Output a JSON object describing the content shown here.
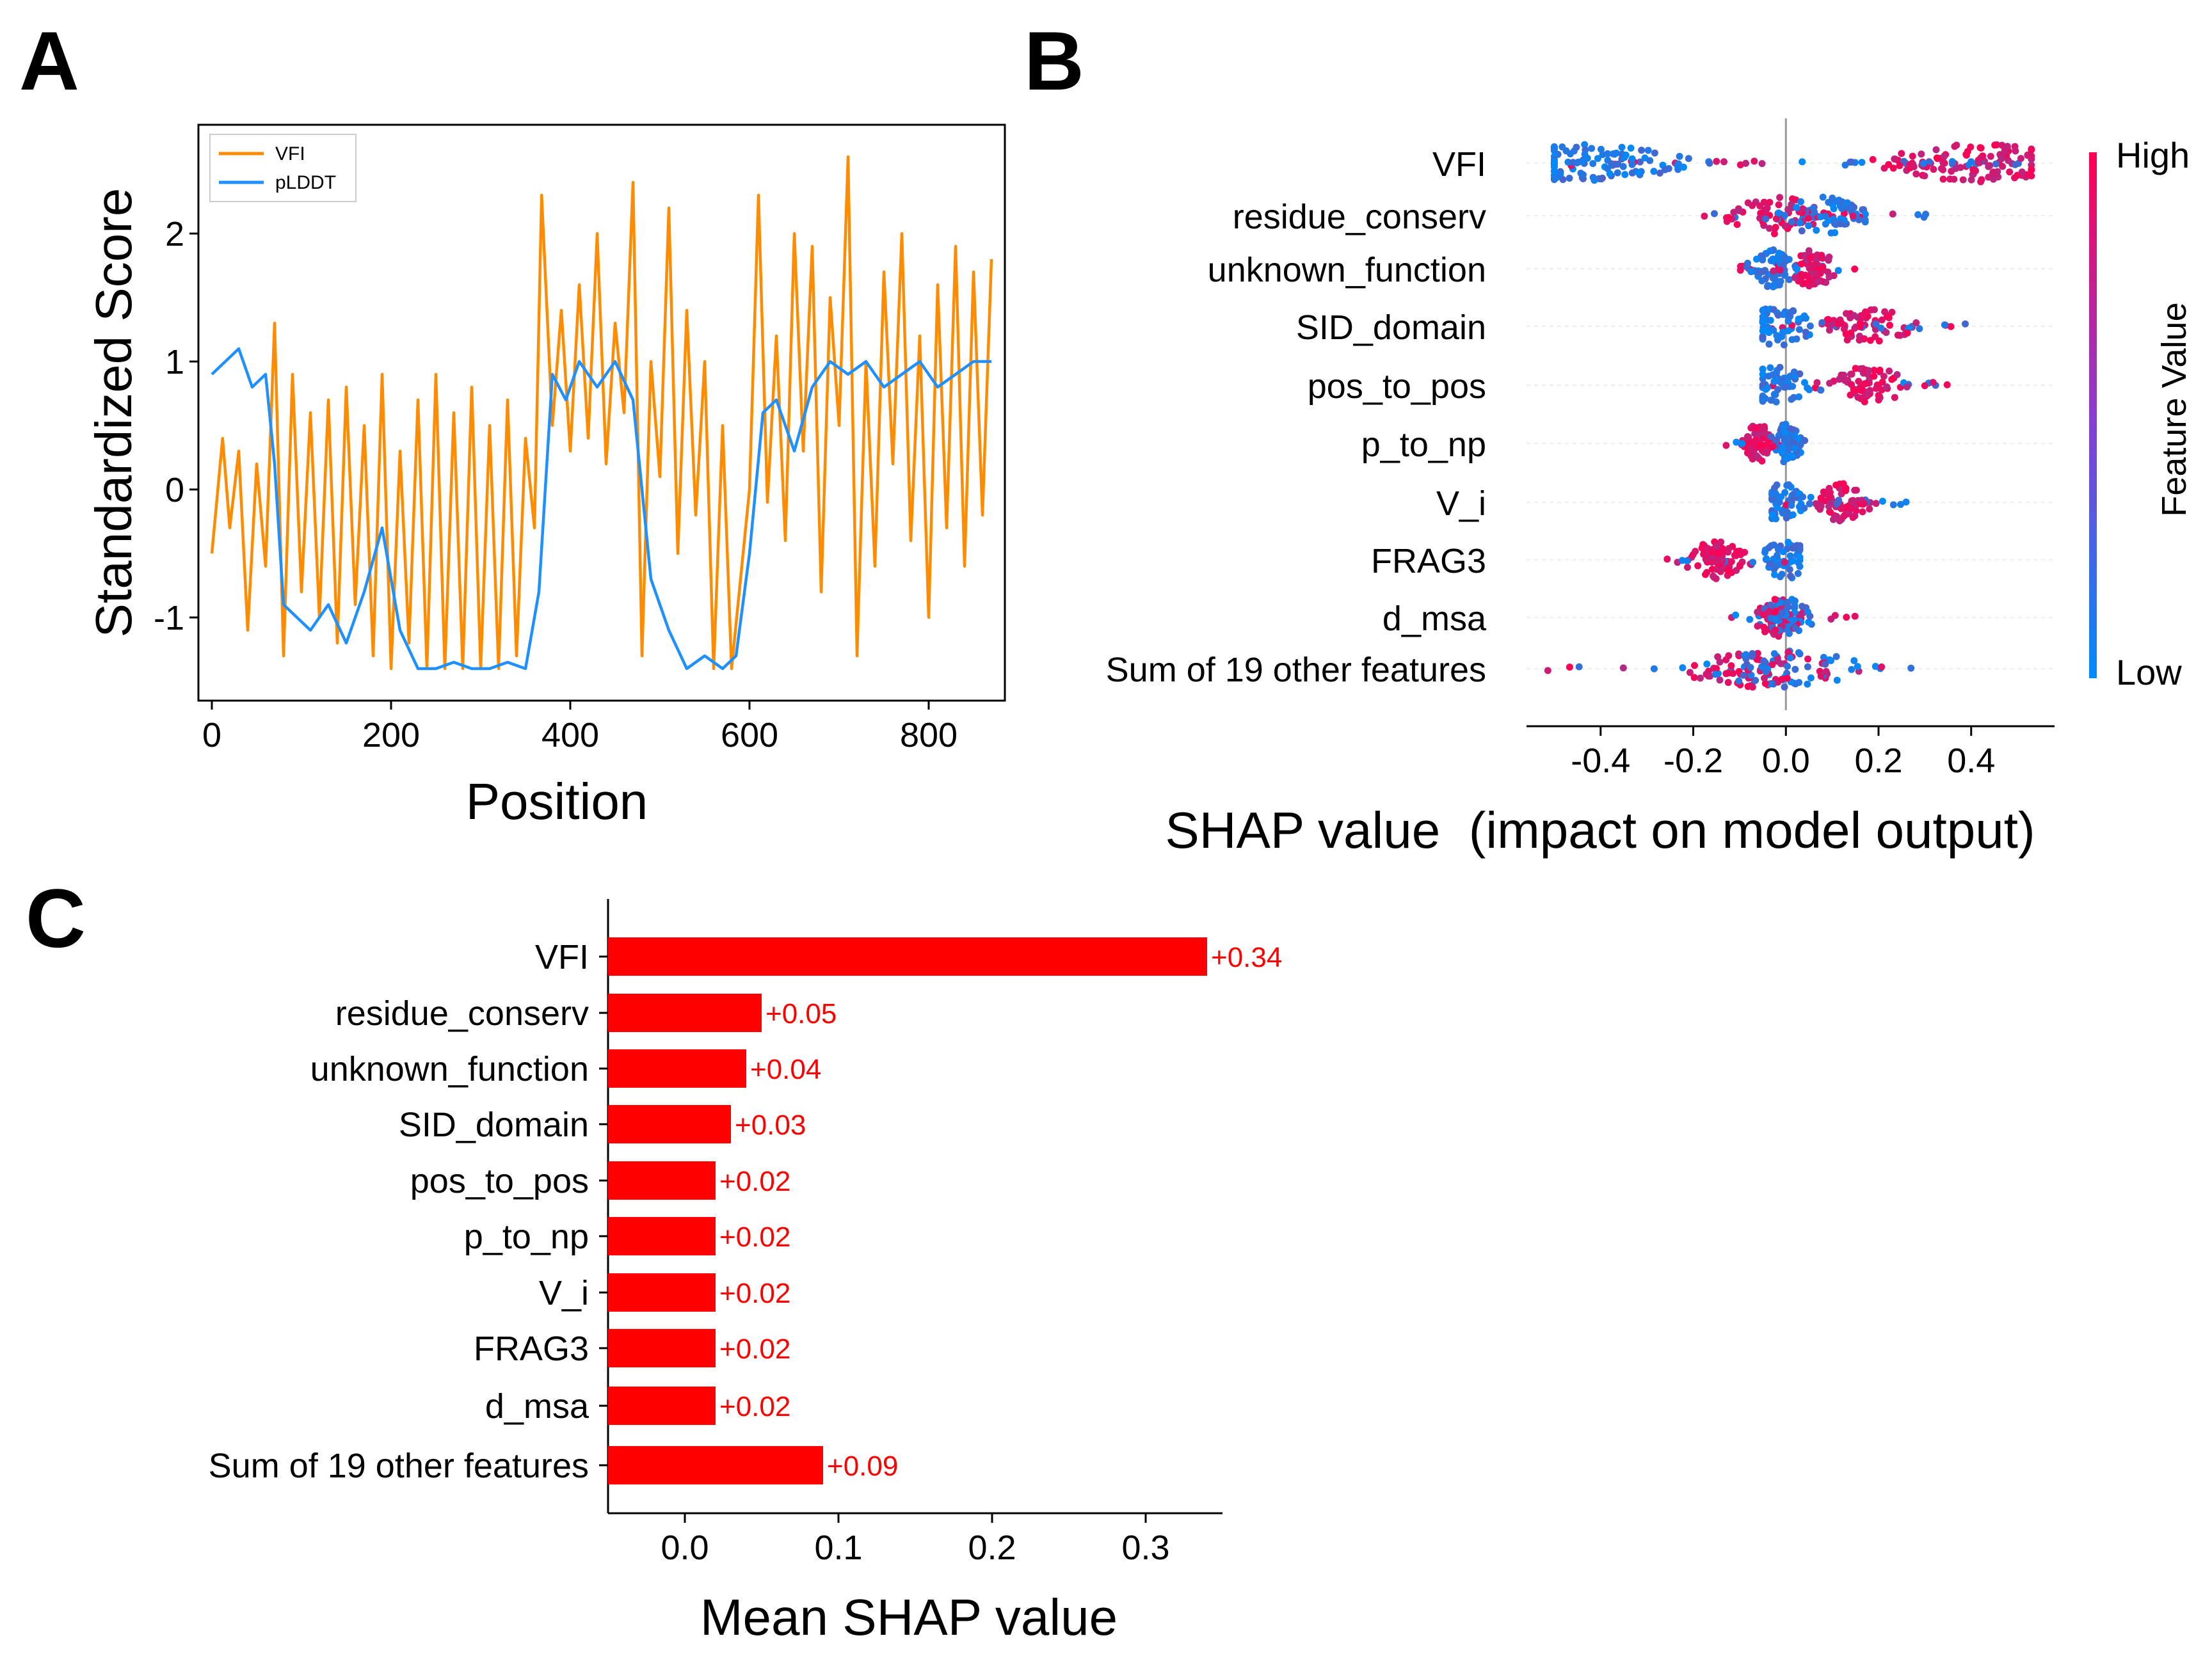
{
  "colors": {
    "vfi_line": "#ff8c00",
    "plddt_line": "#1e90ff",
    "shap_high": "#ff0052",
    "shap_low": "#008bfb",
    "bar": "#ff0000",
    "bar_label": "#ff0000",
    "axis": "#000000"
  },
  "chart_data": [
    {
      "panel": "A",
      "type": "line",
      "xlabel": "Position",
      "ylabel": "Standardized Score",
      "xlim": [
        -15,
        885
      ],
      "ylim": [
        -1.65,
        2.85
      ],
      "xticks": [
        "0",
        "200",
        "400",
        "600",
        "800"
      ],
      "yticks": [
        "-1",
        "0",
        "1",
        "2"
      ],
      "legend": {
        "placement": "top-left",
        "entries": [
          "VFI",
          "pLDDT"
        ]
      },
      "series": [
        {
          "name": "VFI",
          "color": "#ff8c00",
          "x": [
            0,
            12,
            20,
            30,
            40,
            50,
            60,
            70,
            80,
            90,
            100,
            110,
            120,
            130,
            140,
            150,
            160,
            170,
            180,
            190,
            200,
            210,
            220,
            230,
            240,
            250,
            260,
            270,
            280,
            290,
            300,
            310,
            320,
            330,
            340,
            350,
            360,
            368,
            380,
            390,
            400,
            410,
            420,
            430,
            440,
            450,
            460,
            470,
            480,
            490,
            500,
            510,
            520,
            530,
            540,
            550,
            560,
            570,
            580,
            590,
            600,
            610,
            620,
            630,
            640,
            650,
            660,
            670,
            680,
            690,
            700,
            710,
            720,
            730,
            740,
            750,
            760,
            770,
            780,
            790,
            800,
            810,
            820,
            830,
            840,
            850,
            860,
            870
          ],
          "values": [
            -0.5,
            0.4,
            -0.3,
            0.3,
            -1.1,
            0.2,
            -0.6,
            1.3,
            -1.3,
            0.9,
            -0.8,
            0.6,
            -1.0,
            0.7,
            -1.2,
            0.8,
            -0.9,
            0.5,
            -1.3,
            0.9,
            -1.4,
            0.3,
            -1.2,
            0.7,
            -1.4,
            0.9,
            -1.4,
            0.6,
            -1.4,
            0.8,
            -1.4,
            0.5,
            -1.4,
            0.7,
            -1.3,
            0.4,
            -0.3,
            2.3,
            0.5,
            1.4,
            0.3,
            1.6,
            0.4,
            2.0,
            0.2,
            1.3,
            0.6,
            2.4,
            -1.3,
            1.0,
            0.1,
            2.2,
            -0.5,
            1.4,
            -0.2,
            1.0,
            -1.4,
            0.5,
            -1.4,
            -0.7,
            0.0,
            2.3,
            -0.1,
            1.2,
            -0.4,
            2.0,
            0.3,
            1.9,
            -0.8,
            1.5,
            0.5,
            2.6,
            -1.3,
            1.0,
            -0.6,
            1.7,
            0.2,
            2.0,
            -0.4,
            1.2,
            -1.0,
            1.6,
            -0.3,
            1.9,
            -0.6,
            1.7,
            -0.2,
            1.8
          ]
        },
        {
          "name": "pLDDT",
          "color": "#1e90ff",
          "x": [
            0,
            15,
            30,
            45,
            60,
            70,
            80,
            95,
            110,
            130,
            150,
            170,
            190,
            210,
            230,
            250,
            270,
            290,
            310,
            330,
            350,
            365,
            380,
            395,
            410,
            430,
            450,
            470,
            490,
            510,
            530,
            550,
            570,
            585,
            600,
            615,
            630,
            650,
            670,
            690,
            710,
            730,
            750,
            770,
            790,
            810,
            830,
            850,
            870
          ],
          "values": [
            0.9,
            1.0,
            1.1,
            0.8,
            0.9,
            0.2,
            -0.9,
            -1.0,
            -1.1,
            -0.9,
            -1.2,
            -0.8,
            -0.3,
            -1.1,
            -1.4,
            -1.4,
            -1.35,
            -1.4,
            -1.4,
            -1.35,
            -1.4,
            -0.8,
            0.9,
            0.7,
            1.0,
            0.8,
            1.0,
            0.7,
            -0.7,
            -1.1,
            -1.4,
            -1.3,
            -1.4,
            -1.3,
            -0.5,
            0.6,
            0.7,
            0.3,
            0.8,
            1.0,
            0.9,
            1.0,
            0.8,
            0.9,
            1.0,
            0.8,
            0.9,
            1.0,
            1.0
          ]
        }
      ]
    },
    {
      "panel": "B",
      "type": "scatter",
      "title": "",
      "xlabel": "SHAP value  (impact on model output)",
      "xlim": [
        -0.56,
        0.58
      ],
      "xticks": [
        "-0.4",
        "-0.2",
        "0.0",
        "0.2",
        "0.4"
      ],
      "features": [
        "VFI",
        "residue_conserv",
        "unknown_function",
        "SID_domain",
        "pos_to_pos",
        "p_to_np",
        "V_i",
        "FRAG3",
        "d_msa",
        "Sum of 19 other features"
      ],
      "spread": [
        {
          "feature": "VFI",
          "min": -0.5,
          "max": 0.53,
          "low_center": -0.42,
          "high_center": 0.42
        },
        {
          "feature": "residue_conserv",
          "min": -0.2,
          "max": 0.32,
          "low_center": 0.08,
          "high_center": -0.02
        },
        {
          "feature": "unknown_function",
          "min": -0.1,
          "max": 0.15,
          "low_center": -0.03,
          "high_center": 0.06
        },
        {
          "feature": "SID_domain",
          "min": -0.05,
          "max": 0.4,
          "low_center": -0.02,
          "high_center": 0.18
        },
        {
          "feature": "pos_to_pos",
          "min": -0.05,
          "max": 0.37,
          "low_center": -0.02,
          "high_center": 0.18
        },
        {
          "feature": "p_to_np",
          "min": -0.13,
          "max": 0.05,
          "low_center": 0.0,
          "high_center": -0.06
        },
        {
          "feature": "V_i",
          "min": -0.03,
          "max": 0.26,
          "low_center": -0.01,
          "high_center": 0.12
        },
        {
          "feature": "FRAG3",
          "min": -0.28,
          "max": 0.03,
          "low_center": 0.0,
          "high_center": -0.15
        },
        {
          "feature": "d_msa",
          "min": -0.12,
          "max": 0.15,
          "low_center": 0.0,
          "high_center": -0.02
        },
        {
          "feature": "Sum of 19 other features",
          "min": -0.52,
          "max": 0.31,
          "low_center": 0.0,
          "high_center": -0.05
        }
      ],
      "colorbar": {
        "label": "Feature Value",
        "high": "High",
        "low": "Low"
      }
    },
    {
      "panel": "C",
      "type": "bar",
      "orientation": "horizontal",
      "xlabel": "Mean SHAP value",
      "xlim": [
        -0.05,
        0.35
      ],
      "xticks": [
        "0.0",
        "0.1",
        "0.2",
        "0.3"
      ],
      "categories": [
        "VFI",
        "residue_conserv",
        "unknown_function",
        "SID_domain",
        "pos_to_pos",
        "p_to_np",
        "V_i",
        "FRAG3",
        "d_msa",
        "Sum of 19 other features"
      ],
      "values": [
        0.34,
        0.05,
        0.04,
        0.03,
        0.02,
        0.02,
        0.02,
        0.02,
        0.02,
        0.09
      ],
      "labels": [
        "+0.34",
        "+0.05",
        "+0.04",
        "+0.03",
        "+0.02",
        "+0.02",
        "+0.02",
        "+0.02",
        "+0.02",
        "+0.09"
      ]
    }
  ],
  "panel_labels": {
    "a": "A",
    "b": "B",
    "c": "C"
  }
}
